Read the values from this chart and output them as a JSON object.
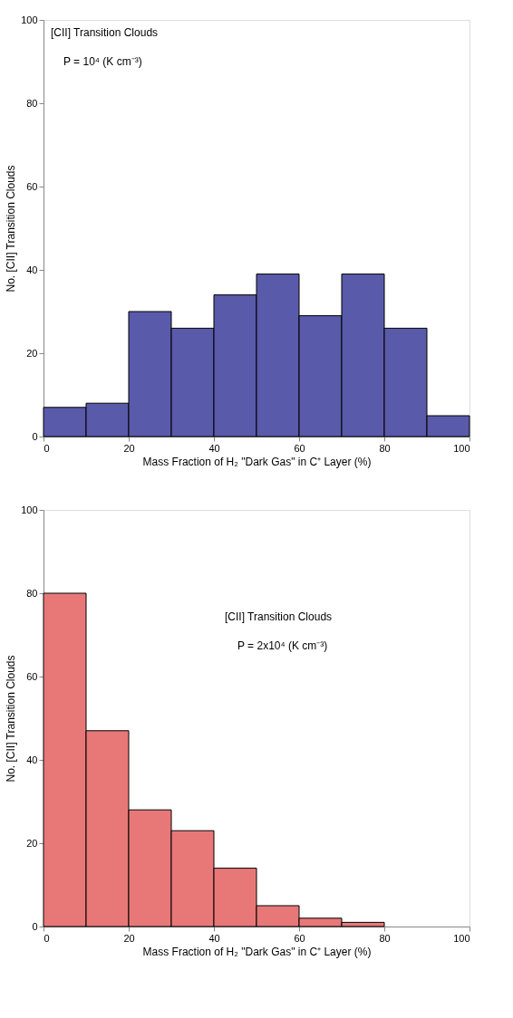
{
  "chart_data": [
    {
      "type": "histogram",
      "bins": [
        0,
        10,
        20,
        30,
        40,
        50,
        60,
        70,
        80,
        90,
        100
      ],
      "values": [
        7,
        8,
        30,
        26,
        34,
        39,
        29,
        39,
        26,
        5
      ],
      "color": "#5a5aaa",
      "xlabel": "Mass Fraction of H₂ \"Dark Gas\" in C⁺ Layer (%)",
      "ylabel": "No. [CII] Transition Clouds",
      "xlim": [
        0,
        100
      ],
      "ylim": [
        0,
        100
      ],
      "xticks": [
        0,
        20,
        40,
        60,
        80,
        100
      ],
      "yticks": [
        0,
        20,
        40,
        60,
        80,
        100
      ],
      "grid": false,
      "legend": false,
      "annotations": [
        "[CII] Transition Clouds",
        "P = 10⁴ (K cm⁻³)"
      ]
    },
    {
      "type": "histogram",
      "bins": [
        0,
        10,
        20,
        30,
        40,
        50,
        60,
        70,
        80
      ],
      "values": [
        80,
        47,
        28,
        23,
        14,
        5,
        2,
        1
      ],
      "color": "#e87878",
      "xlabel": "Mass Fraction of H₂ \"Dark Gas\" in C⁺ Layer (%)",
      "ylabel": "No. [CII] Transition Clouds",
      "xlim": [
        0,
        100
      ],
      "ylim": [
        0,
        100
      ],
      "xticks": [
        0,
        20,
        40,
        60,
        80,
        100
      ],
      "yticks": [
        0,
        20,
        40,
        60,
        80,
        100
      ],
      "grid": false,
      "legend": false,
      "annotations": [
        "[CII] Transition Clouds",
        "P = 2x10⁴ (K cm⁻³)"
      ]
    }
  ]
}
